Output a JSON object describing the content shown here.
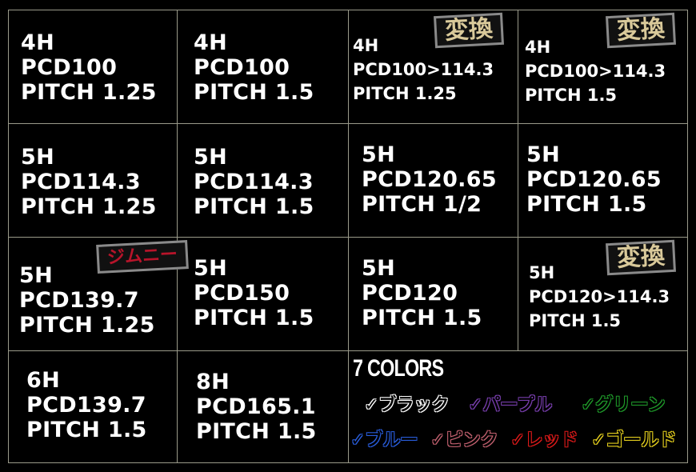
{
  "cells": [
    {
      "lines": [
        "4H",
        "PCD100",
        "PITCH 1.25"
      ]
    },
    {
      "lines": [
        "4H",
        "PCD100",
        "PITCH 1.5"
      ]
    },
    {
      "lines": [
        "4H",
        "PCD100>114.3",
        "PITCH 1.25"
      ],
      "badge": "変換"
    },
    {
      "lines": [
        "4H",
        "PCD100>114.3",
        "PITCH 1.5"
      ],
      "badge": "変換"
    },
    {
      "lines": [
        "5H",
        "PCD114.3",
        "PITCH 1.25"
      ]
    },
    {
      "lines": [
        "5H",
        "PCD114.3",
        "PITCH 1.5"
      ]
    },
    {
      "lines": [
        "5H",
        "PCD120.65",
        "PITCH 1/2"
      ]
    },
    {
      "lines": [
        "5H",
        "PCD120.65",
        "PITCH 1.5"
      ]
    },
    {
      "lines": [
        "5H",
        "PCD139.7",
        "PITCH 1.25"
      ],
      "badge": "ジムニー"
    },
    {
      "lines": [
        "5H",
        "PCD150",
        "PITCH 1.5"
      ]
    },
    {
      "lines": [
        "5H",
        "PCD120",
        "PITCH 1.5"
      ]
    },
    {
      "lines": [
        "5H",
        "PCD120>114.3",
        "PITCH 1.5"
      ],
      "badge": "変換"
    },
    {
      "lines": [
        "6H",
        "PCD139.7",
        "PITCH 1.5"
      ]
    },
    {
      "lines": [
        "8H",
        "PCD165.1",
        "PITCH 1.5"
      ]
    }
  ],
  "colors": {
    "title": "7 COLORS",
    "items": [
      {
        "label": "✓ブラック",
        "color": "#ffffff"
      },
      {
        "label": "✓パープル",
        "color": "#7a3fb0"
      },
      {
        "label": "✓グリーン",
        "color": "#1f9a2a"
      },
      {
        "label": "✓ブルー",
        "color": "#2a5fe0"
      },
      {
        "label": "✓ピンク",
        "color": "#c0606e"
      },
      {
        "label": "✓レッド",
        "color": "#e01a1a"
      },
      {
        "label": "✓ゴールド",
        "color": "#e8d21e"
      }
    ]
  }
}
